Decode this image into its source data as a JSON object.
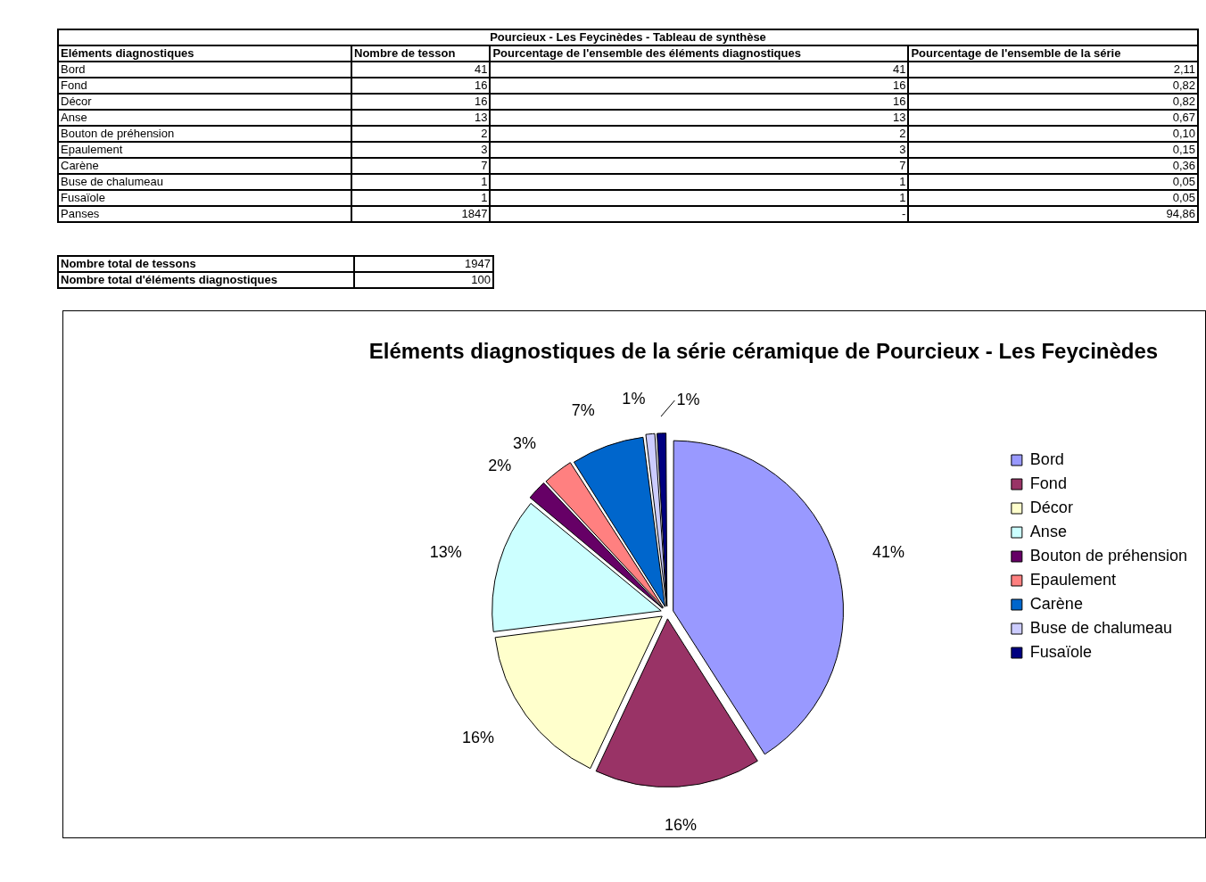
{
  "chart_data": [
    {
      "type": "other",
      "title": "Pourcieux - Les Feycinèdes - Tableau de synthèse",
      "ylabel": "Eléments diagnostiques",
      "categories": [
        "Bord",
        "Fond",
        "Décor",
        "Anse",
        "Bouton de préhension",
        "Epaulement",
        "Carène",
        "Buse de chalumeau",
        "Fusaïole",
        "Panses"
      ],
      "series": [
        {
          "name": "Nombre de tesson",
          "values": [
            41,
            16,
            16,
            13,
            2,
            3,
            7,
            1,
            1,
            1847
          ],
          "value_labels": [
            "41",
            "16",
            "16",
            "13",
            "2",
            "3",
            "7",
            "1",
            "1",
            "1847"
          ]
        },
        {
          "name": "Pourcentage de l'ensemble des éléments diagnostiques",
          "values": [
            41,
            16,
            16,
            13,
            2,
            3,
            7,
            1,
            1,
            null
          ],
          "value_labels": [
            "41",
            "16",
            "16",
            "13",
            "2",
            "3",
            "7",
            "1",
            "1",
            "-"
          ]
        },
        {
          "name": "Pourcentage de l'ensemble de la série",
          "values": [
            2.11,
            0.82,
            0.82,
            0.67,
            0.1,
            0.15,
            0.36,
            0.05,
            0.05,
            94.86
          ],
          "value_labels": [
            "2,11",
            "0,82",
            "0,82",
            "0,67",
            "0,10",
            "0,15",
            "0,36",
            "0,05",
            "0,05",
            "94,86"
          ]
        }
      ]
    },
    {
      "type": "other",
      "categories": [
        "Nombre total de tessons",
        "Nombre total d'éléments diagnostiques"
      ],
      "values": [
        1947,
        100
      ],
      "value_labels": [
        "1947",
        "100"
      ]
    },
    {
      "type": "pie",
      "title": "Eléments diagnostiques de la série céramique de Pourcieux - Les Feycinèdes",
      "categories": [
        "Bord",
        "Fond",
        "Décor",
        "Anse",
        "Bouton de préhension",
        "Epaulement",
        "Carène",
        "Buse de chalumeau",
        "Fusaïole"
      ],
      "values": [
        41,
        16,
        16,
        13,
        2,
        3,
        7,
        1,
        1
      ],
      "value_labels": [
        "41%",
        "16%",
        "16%",
        "13%",
        "2%",
        "3%",
        "7%",
        "1%",
        "1%"
      ],
      "colors": [
        "#9999ff",
        "#993366",
        "#ffffcc",
        "#ccffff",
        "#660066",
        "#ff8080",
        "#0066cc",
        "#ccccff",
        "#000080"
      ],
      "legend": "right"
    }
  ]
}
